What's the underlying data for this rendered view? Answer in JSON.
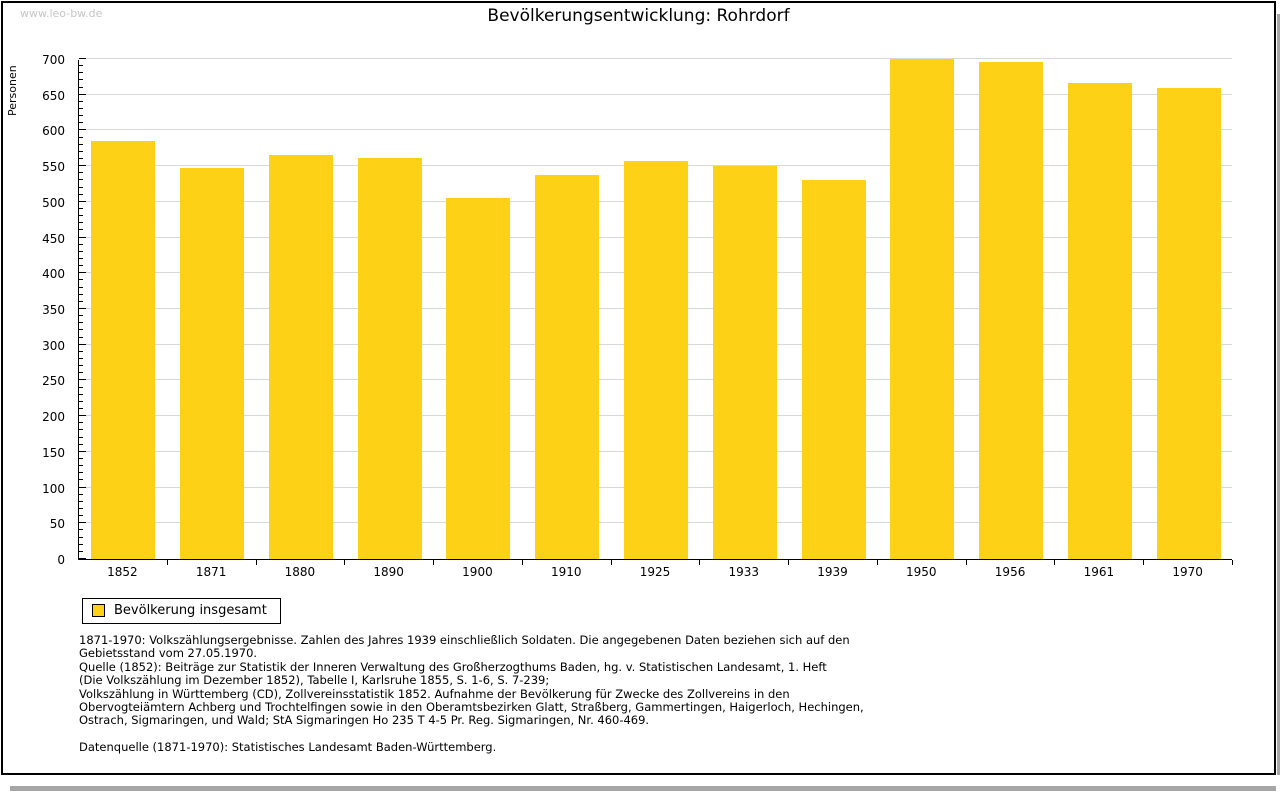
{
  "watermark": "www.leo-bw.de",
  "chart_data": {
    "type": "bar",
    "title": "Bevölkerungsentwicklung: Rohrdorf",
    "ylabel": "Personen",
    "xlabel": "",
    "ylim": [
      0,
      700
    ],
    "ytick_step": 50,
    "minor_tick_step": 10,
    "grid": true,
    "legend_position": "bottom-left",
    "bar_color": "#FCD116",
    "categories": [
      "1852",
      "1871",
      "1880",
      "1890",
      "1900",
      "1910",
      "1925",
      "1933",
      "1939",
      "1950",
      "1956",
      "1961",
      "1970"
    ],
    "series": [
      {
        "name": "Bevölkerung insgesamt",
        "values": [
          585,
          548,
          565,
          562,
          505,
          538,
          557,
          550,
          530,
          700,
          696,
          666,
          660
        ]
      }
    ]
  },
  "legend": {
    "label": "Bevölkerung insgesamt",
    "swatch_color": "#FCD116"
  },
  "footnotes": {
    "lines": [
      "1871-1970: Volkszählungsergebnisse. Zahlen des Jahres 1939 einschließlich Soldaten. Die angegebenen Daten beziehen sich auf den",
      "Gebietsstand vom 27.05.1970.",
      "Quelle (1852): Beiträge zur Statistik der Inneren Verwaltung des Großherzogthums Baden, hg. v. Statistischen Landesamt, 1. Heft",
      "(Die Volkszählung im Dezember 1852), Tabelle I, Karlsruhe 1855, S. 1-6, S. 7-239;",
      "Volkszählung in Württemberg (CD), Zollvereinsstatistik 1852. Aufnahme der Bevölkerung für Zwecke des Zollvereins in den",
      "Obervogteiämtern Achberg und Trochtelfingen sowie in den Oberamtsbezirken Glatt, Straßberg, Gammertingen, Haigerloch, Hechingen,",
      "Ostrach, Sigmaringen, und Wald; StA Sigmaringen Ho 235 T 4-5 Pr. Reg. Sigmaringen, Nr. 460-469."
    ],
    "datasource": "Datenquelle (1871-1970): Statistisches Landesamt Baden-Württemberg."
  }
}
